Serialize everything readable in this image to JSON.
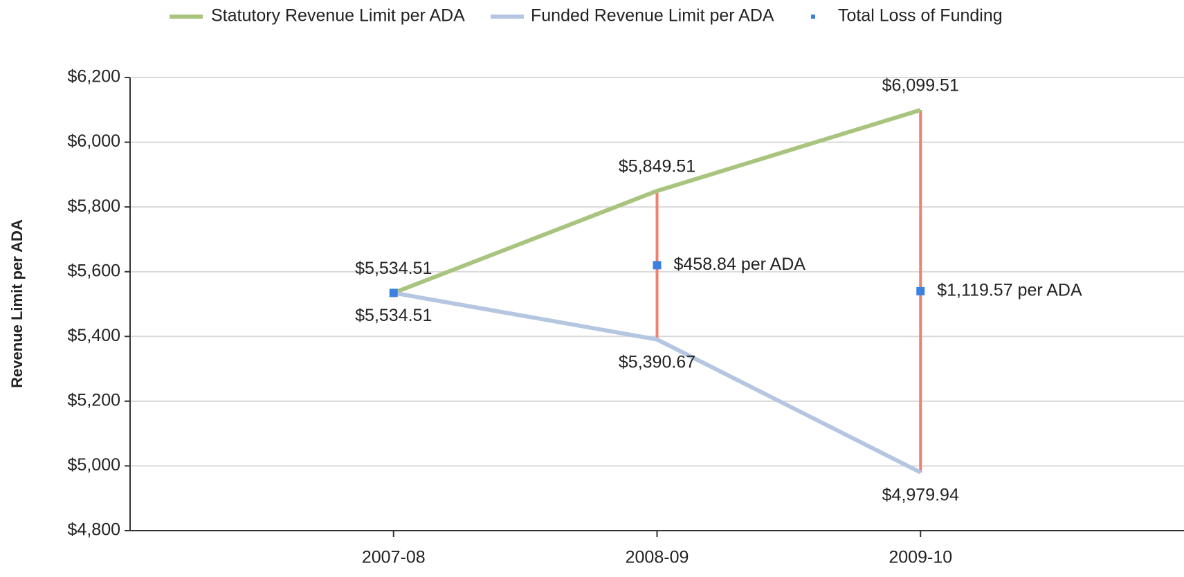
{
  "chart_data": {
    "type": "line",
    "y_label": "Revenue Limit per ADA",
    "categories": [
      "2007-08",
      "2008-09",
      "2009-10"
    ],
    "series": [
      {
        "name": "Statutory Revenue Limit per ADA",
        "color": "#a9c47f",
        "values": [
          5534.51,
          5849.51,
          6099.51
        ],
        "value_labels": [
          "$5,534.51",
          "$5,849.51",
          "$6,099.51"
        ]
      },
      {
        "name": "Funded Revenue Limit per ADA",
        "color": "#b4c6e0",
        "values": [
          5534.51,
          5390.67,
          4979.94
        ],
        "value_labels": [
          "$5,534.51",
          "$5,390.67",
          "$4,979.94"
        ]
      },
      {
        "name": "Total Loss of Funding",
        "color": "#3b82e0",
        "range_color": "#f08070",
        "values": [
          0,
          458.84,
          1119.57
        ],
        "value_labels": [
          null,
          "$458.84 per ADA",
          "$1,119.57 per ADA"
        ]
      }
    ],
    "ylim": [
      4800,
      6200
    ],
    "yticks": [
      {
        "value": 4800,
        "label": "$4,800"
      },
      {
        "value": 5000,
        "label": "$5,000"
      },
      {
        "value": 5200,
        "label": "$5,200"
      },
      {
        "value": 5400,
        "label": "$5,400"
      },
      {
        "value": 5600,
        "label": "$5,600"
      },
      {
        "value": 5800,
        "label": "$5,800"
      },
      {
        "value": 6000,
        "label": "$6,000"
      },
      {
        "value": 6200,
        "label": "$6,200"
      }
    ],
    "grid": true,
    "legend": "top"
  }
}
